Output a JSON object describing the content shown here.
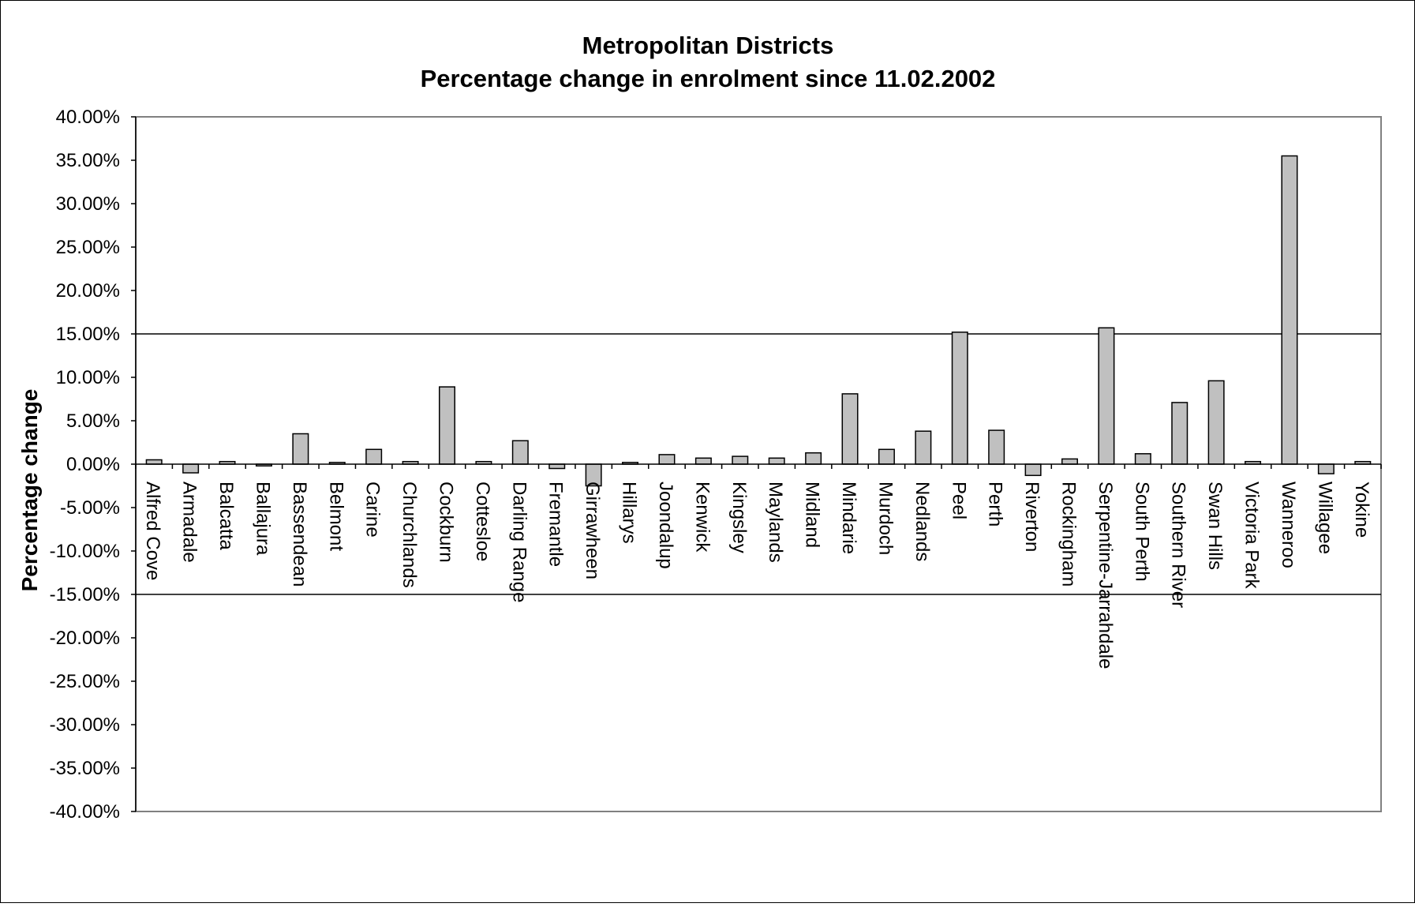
{
  "chart_data": {
    "type": "bar",
    "title": "Metropolitan Districts",
    "subtitle": "Percentage change in enrolment since 11.02.2002",
    "xlabel": "",
    "ylabel": "Percentage change",
    "ylim": [
      -0.4,
      0.4
    ],
    "y_ticks": [
      "40.00%",
      "35.00%",
      "30.00%",
      "25.00%",
      "20.00%",
      "15.00%",
      "10.00%",
      "5.00%",
      "0.00%",
      "-5.00%",
      "-10.00%",
      "-15.00%",
      "-20.00%",
      "-25.00%",
      "-30.00%",
      "-35.00%",
      "-40.00%"
    ],
    "reference_lines": [
      0.15,
      -0.15
    ],
    "grid": false,
    "legend": "none",
    "bar_color": "#c0c0c0",
    "categories": [
      "Alfred Cove",
      "Armadale",
      "Balcatta",
      "Ballajura",
      "Bassendean",
      "Belmont",
      "Carine",
      "Churchlands",
      "Cockburn",
      "Cottesloe",
      "Darling Range",
      "Fremantle",
      "Girrawheen",
      "Hillarys",
      "Joondalup",
      "Kenwick",
      "Kingsley",
      "Maylands",
      "Midland",
      "Mindarie",
      "Murdoch",
      "Nedlands",
      "Peel",
      "Perth",
      "Riverton",
      "Rockingham",
      "Serpentine-Jarrahdale",
      "South Perth",
      "Southern River",
      "Swan Hills",
      "Victoria Park",
      "Wanneroo",
      "Willagee",
      "Yokine"
    ],
    "values": [
      0.005,
      -0.01,
      0.003,
      -0.002,
      0.035,
      0.002,
      0.017,
      0.003,
      0.089,
      0.003,
      0.027,
      -0.005,
      -0.025,
      0.002,
      0.011,
      0.007,
      0.009,
      0.007,
      0.013,
      0.081,
      0.017,
      0.038,
      0.152,
      0.039,
      -0.013,
      0.006,
      0.157,
      0.012,
      0.071,
      0.096,
      0.003,
      0.355,
      -0.011,
      0.003
    ]
  }
}
